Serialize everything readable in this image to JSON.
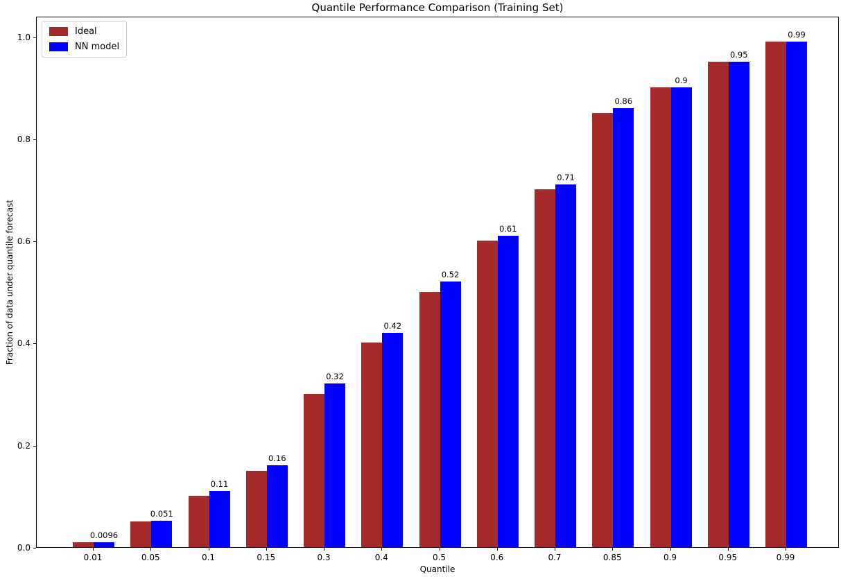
{
  "chart_data": {
    "type": "bar",
    "title": "Quantile Performance Comparison (Training Set)",
    "xlabel": "Quantile",
    "ylabel": "Fraction of data under quantile forecast",
    "categories": [
      "0.01",
      "0.05",
      "0.1",
      "0.15",
      "0.3",
      "0.4",
      "0.5",
      "0.6",
      "0.7",
      "0.85",
      "0.9",
      "0.95",
      "0.99"
    ],
    "series": [
      {
        "name": "Ideal",
        "color": "#A52A2A",
        "values": [
          0.01,
          0.05,
          0.1,
          0.15,
          0.3,
          0.4,
          0.5,
          0.6,
          0.7,
          0.85,
          0.9,
          0.95,
          0.99
        ]
      },
      {
        "name": "NN model",
        "color": "#0000FF",
        "values": [
          0.0096,
          0.051,
          0.11,
          0.16,
          0.32,
          0.42,
          0.52,
          0.61,
          0.71,
          0.86,
          0.9,
          0.95,
          0.99
        ]
      }
    ],
    "bar_labels": [
      "0.0096",
      "0.051",
      "0.11",
      "0.16",
      "0.32",
      "0.42",
      "0.52",
      "0.61",
      "0.71",
      "0.86",
      "0.9",
      "0.95",
      "0.99"
    ],
    "yticks": [
      "0.0",
      "0.2",
      "0.4",
      "0.6",
      "0.8",
      "1.0"
    ],
    "ylim": [
      0,
      1.04
    ],
    "grid": false,
    "legend_position": "upper left"
  }
}
